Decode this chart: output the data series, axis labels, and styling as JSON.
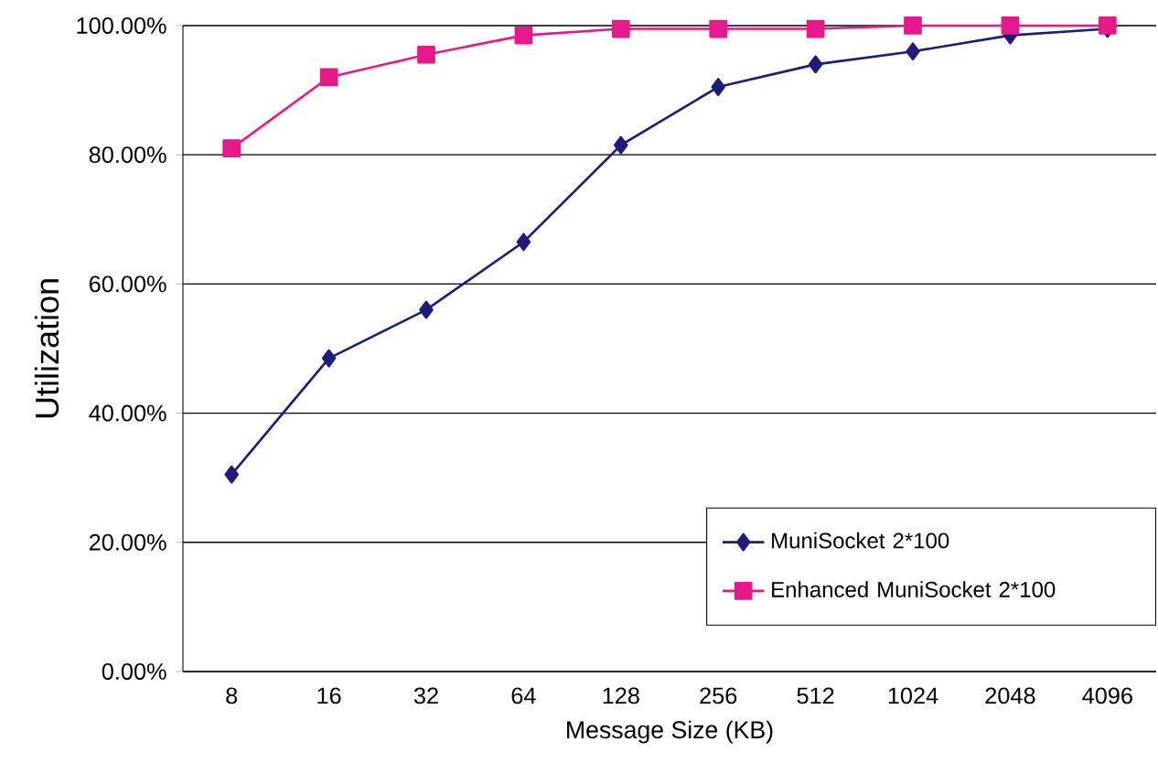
{
  "chart_data": {
    "type": "line",
    "xlabel": "Message Size (KB)",
    "ylabel": "Utilization",
    "categories": [
      "8",
      "16",
      "32",
      "64",
      "128",
      "256",
      "512",
      "1024",
      "2048",
      "4096"
    ],
    "series": [
      {
        "name": "MuniSocket 2*100",
        "color": "#1c1c7a",
        "marker": "diamond",
        "values": [
          30.5,
          48.5,
          56,
          66.5,
          81.5,
          90.5,
          94,
          96,
          98.5,
          99.5
        ]
      },
      {
        "name": "Enhanced MuniSocket 2*100",
        "color": "#e6198c",
        "marker": "square",
        "values": [
          81,
          92,
          95.5,
          98.5,
          99.5,
          99.5,
          99.5,
          100,
          100,
          100
        ]
      }
    ],
    "ylim": [
      0,
      100
    ],
    "yticks": [
      {
        "value": 0,
        "label": "0.00%"
      },
      {
        "value": 20,
        "label": "20.00%"
      },
      {
        "value": 40,
        "label": "40.00%"
      },
      {
        "value": 60,
        "label": "60.00%"
      },
      {
        "value": 80,
        "label": "80.00%"
      },
      {
        "value": 100,
        "label": "100.00%"
      }
    ],
    "grid": "y",
    "legend": "bottom right",
    "line_style": "solid"
  }
}
